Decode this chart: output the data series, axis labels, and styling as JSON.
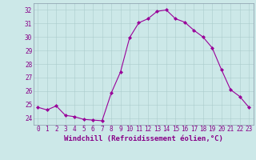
{
  "x": [
    0,
    1,
    2,
    3,
    4,
    5,
    6,
    7,
    8,
    9,
    10,
    11,
    12,
    13,
    14,
    15,
    16,
    17,
    18,
    19,
    20,
    21,
    22,
    23
  ],
  "y": [
    24.8,
    24.6,
    24.9,
    24.2,
    24.1,
    23.9,
    23.85,
    23.8,
    25.85,
    27.4,
    29.95,
    31.05,
    31.35,
    31.9,
    32.0,
    31.35,
    31.1,
    30.5,
    30.0,
    29.2,
    27.6,
    26.1,
    25.6,
    24.8
  ],
  "line_color": "#990099",
  "marker": "D",
  "markersize": 2.0,
  "linewidth": 0.8,
  "xlabel": "Windchill (Refroidissement éolien,°C)",
  "xlabel_fontsize": 6.5,
  "ylim": [
    23.5,
    32.5
  ],
  "xlim": [
    -0.5,
    23.5
  ],
  "yticks": [
    24,
    25,
    26,
    27,
    28,
    29,
    30,
    31,
    32
  ],
  "xticks": [
    0,
    1,
    2,
    3,
    4,
    5,
    6,
    7,
    8,
    9,
    10,
    11,
    12,
    13,
    14,
    15,
    16,
    17,
    18,
    19,
    20,
    21,
    22,
    23
  ],
  "xtick_labels": [
    "0",
    "1",
    "2",
    "3",
    "4",
    "5",
    "6",
    "7",
    "8",
    "9",
    "10",
    "11",
    "12",
    "13",
    "14",
    "15",
    "16",
    "17",
    "18",
    "19",
    "20",
    "21",
    "22",
    "23"
  ],
  "grid_color": "#aacccc",
  "bg_color": "#cce8e8",
  "tick_fontsize": 5.5,
  "tick_color": "#880088",
  "spine_color": "#8899aa",
  "xlabel_color": "#880088"
}
